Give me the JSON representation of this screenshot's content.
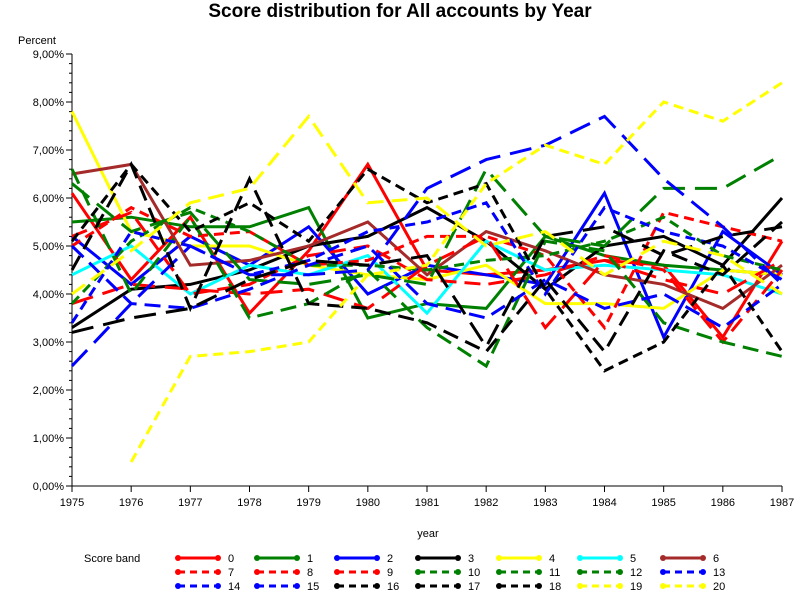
{
  "chart_data": {
    "type": "line",
    "title": "Score distribution for All accounts by Year",
    "xlabel": "year",
    "ylabel": "Percent",
    "x": [
      1975,
      1976,
      1977,
      1978,
      1979,
      1980,
      1981,
      1982,
      1983,
      1984,
      1985,
      1986,
      1987
    ],
    "xlim": [
      1975,
      1987
    ],
    "ylim": [
      0,
      9
    ],
    "yticks": [
      "0,00%",
      "1,00%",
      "2,00%",
      "3,00%",
      "4,00%",
      "5,00%",
      "6,00%",
      "7,00%",
      "8,00%",
      "9,00%"
    ],
    "xticks": [
      "1975",
      "1976",
      "1977",
      "1978",
      "1979",
      "1980",
      "1981",
      "1982",
      "1983",
      "1984",
      "1985",
      "1986",
      "1987"
    ],
    "grid": false,
    "legend": {
      "title": "Score band",
      "position": "bottom"
    },
    "series": [
      {
        "name": "0",
        "color": "#ff0000",
        "dash": "solid",
        "values": [
          6.1,
          4.3,
          5.6,
          3.6,
          4.9,
          6.7,
          4.5,
          4.4,
          4.5,
          4.7,
          4.6,
          3.1,
          5.1
        ]
      },
      {
        "name": "1",
        "color": "#008000",
        "dash": "solid",
        "values": [
          5.5,
          5.6,
          5.4,
          5.4,
          5.8,
          3.5,
          3.8,
          3.7,
          5.2,
          4.8,
          4.6,
          4.5,
          4.4
        ]
      },
      {
        "name": "2",
        "color": "#0000ff",
        "dash": "solid",
        "values": [
          5.2,
          4.2,
          5.2,
          4.6,
          5.4,
          4.0,
          4.6,
          4.4,
          4.2,
          6.1,
          3.1,
          5.3,
          4.4
        ]
      },
      {
        "name": "3",
        "color": "#000000",
        "dash": "solid",
        "values": [
          3.3,
          4.1,
          4.2,
          4.5,
          5.0,
          5.2,
          5.8,
          5.1,
          4.1,
          5.0,
          5.2,
          4.6,
          6.0
        ]
      },
      {
        "name": "4",
        "color": "#ffff00",
        "dash": "solid",
        "values": [
          7.8,
          5.3,
          5.0,
          5.0,
          4.6,
          4.4,
          4.3,
          4.6,
          3.8,
          3.8,
          3.7,
          4.5,
          4.4
        ]
      },
      {
        "name": "5",
        "color": "#00ffff",
        "dash": "solid",
        "values": [
          4.4,
          5.0,
          4.0,
          4.6,
          4.4,
          4.8,
          3.6,
          5.1,
          4.5,
          4.6,
          4.5,
          4.4,
          4.0
        ]
      },
      {
        "name": "6",
        "color": "#a52a2a",
        "dash": "solid",
        "values": [
          6.5,
          6.7,
          4.6,
          4.7,
          5.0,
          5.5,
          4.4,
          5.3,
          4.9,
          4.4,
          4.2,
          3.7,
          4.6
        ]
      },
      {
        "name": "7",
        "color": "#ff0000",
        "dash": "dashed",
        "values": [
          5.0,
          5.8,
          5.2,
          5.3,
          4.6,
          4.7,
          5.2,
          5.2,
          4.8,
          3.3,
          5.7,
          5.4,
          5.1
        ]
      },
      {
        "name": "8",
        "color": "#ff0000",
        "dash": "dash2",
        "values": [
          5.2,
          5.7,
          4.0,
          4.2,
          4.8,
          5.0,
          4.3,
          4.2,
          4.4,
          4.8,
          4.5,
          3.0,
          4.5
        ]
      },
      {
        "name": "9",
        "color": "#ff0000",
        "dash": "dash3",
        "values": [
          3.8,
          4.2,
          4.1,
          4.0,
          4.1,
          3.7,
          4.6,
          5.2,
          3.3,
          4.7,
          4.3,
          4.0,
          4.7
        ]
      },
      {
        "name": "10",
        "color": "#008000",
        "dash": "dashed",
        "values": [
          3.8,
          5.1,
          5.8,
          5.3,
          4.6,
          4.6,
          4.5,
          4.7,
          4.8,
          5.1,
          5.6,
          4.8,
          4.5
        ]
      },
      {
        "name": "11",
        "color": "#008000",
        "dash": "dash2",
        "values": [
          6.6,
          4.0,
          5.6,
          3.5,
          3.8,
          4.5,
          3.3,
          2.5,
          5.1,
          4.9,
          3.4,
          3.0,
          2.7
        ]
      },
      {
        "name": "12",
        "color": "#008000",
        "dash": "dash3",
        "values": [
          6.3,
          5.3,
          5.7,
          4.3,
          4.2,
          4.4,
          4.2,
          6.6,
          5.2,
          5.0,
          6.2,
          6.2,
          6.9
        ]
      },
      {
        "name": "13",
        "color": "#0000ff",
        "dash": "dashed",
        "values": [
          3.4,
          5.3,
          5.0,
          4.4,
          4.7,
          5.3,
          5.5,
          5.9,
          4.0,
          5.8,
          5.3,
          5.0,
          4.3
        ]
      },
      {
        "name": "14",
        "color": "#0000ff",
        "dash": "dash2",
        "values": [
          5.0,
          3.8,
          3.7,
          4.1,
          4.6,
          5.0,
          3.8,
          3.5,
          4.3,
          3.7,
          4.0,
          3.3,
          4.2
        ]
      },
      {
        "name": "15",
        "color": "#0000ff",
        "dash": "dash3",
        "values": [
          2.5,
          3.8,
          5.0,
          4.4,
          4.4,
          4.5,
          6.2,
          6.8,
          7.1,
          7.7,
          6.4,
          5.4,
          4.2
        ]
      },
      {
        "name": "16",
        "color": "#000000",
        "dash": "dashed",
        "values": [
          5.1,
          6.7,
          5.3,
          5.9,
          5.1,
          6.6,
          5.9,
          6.3,
          4.1,
          2.4,
          3.0,
          4.6,
          2.8
        ]
      },
      {
        "name": "17",
        "color": "#000000",
        "dash": "dash2",
        "values": [
          4.5,
          6.7,
          3.7,
          6.4,
          3.8,
          3.7,
          3.4,
          2.8,
          4.3,
          2.8,
          4.9,
          4.4,
          5.5
        ]
      },
      {
        "name": "18",
        "color": "#000000",
        "dash": "dash3",
        "values": [
          3.2,
          3.5,
          3.7,
          4.3,
          4.7,
          4.6,
          4.8,
          2.9,
          5.2,
          5.4,
          4.8,
          5.2,
          5.4
        ]
      },
      {
        "name": "19",
        "color": "#ffff00",
        "dash": "dashed",
        "values": [
          null,
          0.5,
          2.7,
          2.8,
          3.0,
          4.4,
          4.6,
          6.3,
          7.1,
          6.7,
          8.0,
          7.6,
          8.4
        ]
      },
      {
        "name": "20",
        "color": "#ffff00",
        "dash": "dash2",
        "values": [
          4.0,
          4.9,
          5.9,
          6.2,
          7.7,
          5.9,
          6.0,
          5.0,
          5.3,
          4.4,
          5.1,
          4.8,
          4.0
        ]
      }
    ]
  }
}
